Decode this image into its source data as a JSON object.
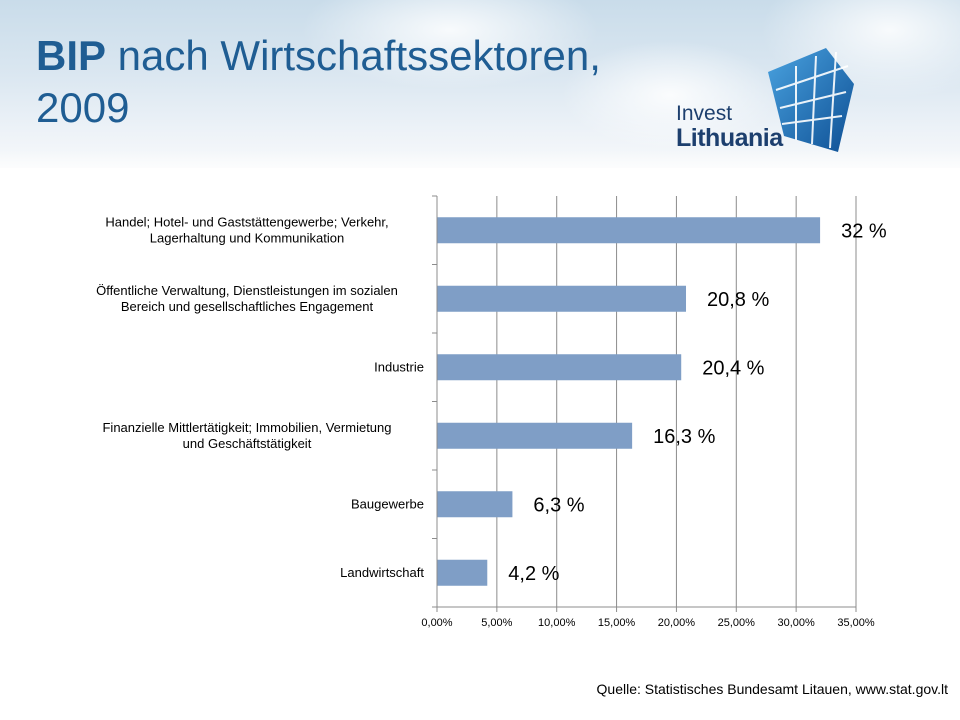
{
  "header": {
    "title_bold": "BIP",
    "title_rest": " nach Wirtschaftssektoren, 2009",
    "logo_line1": "Invest",
    "logo_line2": "Lithuania"
  },
  "colors": {
    "bar": "#7f9ec6",
    "title": "#1f5d93",
    "logo_blue": "#1f6bb0"
  },
  "chart_data": {
    "type": "bar",
    "orientation": "horizontal",
    "categories": [
      [
        "Handel; Hotel- und Gaststättengewerbe; Verkehr,",
        "Lagerhaltung und Kommunikation"
      ],
      [
        "Öffentliche Verwaltung, Dienstleistungen im sozialen",
        "Bereich und gesellschaftliches Engagement"
      ],
      [
        "Industrie"
      ],
      [
        "Finanzielle Mittlertätigkeit; Immobilien, Vermietung",
        "und Geschäftstätigkeit"
      ],
      [
        "Baugewerbe"
      ],
      [
        "Landwirtschaft"
      ]
    ],
    "values": [
      32.0,
      20.8,
      20.4,
      16.3,
      6.3,
      4.2
    ],
    "data_labels": [
      "32 %",
      "20,8 %",
      "20,4 %",
      "16,3 %",
      "6,3 %",
      "4,2 %"
    ],
    "xlim": [
      0,
      35
    ],
    "xticks": [
      0,
      5,
      10,
      15,
      20,
      25,
      30,
      35
    ],
    "xtick_labels": [
      "0,00%",
      "5,00%",
      "10,00%",
      "15,00%",
      "20,00%",
      "25,00%",
      "30,00%",
      "35,00%"
    ],
    "grid": "vertical",
    "legend": "none"
  },
  "footer": {
    "source": "Quelle: Statistisches Bundesamt Litauen, www.stat.gov.lt"
  }
}
